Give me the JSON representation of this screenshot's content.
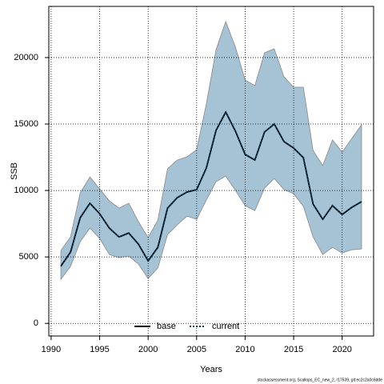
{
  "chart_data": {
    "type": "line",
    "xlabel": "Years",
    "ylabel": "SSB",
    "footer": "stockassessment.org, Scallops_EC_new_2, r17539, git:ec2c2a0c6dde",
    "x": [
      1991,
      1992,
      1993,
      1994,
      1995,
      1996,
      1997,
      1998,
      1999,
      2000,
      2001,
      2002,
      2003,
      2004,
      2005,
      2006,
      2007,
      2008,
      2009,
      2010,
      2011,
      2012,
      2013,
      2014,
      2015,
      2016,
      2017,
      2018,
      2019,
      2020,
      2021,
      2022
    ],
    "series": [
      {
        "name": "base",
        "color": "#000000",
        "dash": false,
        "values": [
          4300,
          5360,
          7950,
          9040,
          8250,
          7170,
          6500,
          6800,
          5960,
          4700,
          5720,
          8670,
          9460,
          9880,
          10060,
          11690,
          14520,
          15900,
          14460,
          12710,
          12290,
          14400,
          15000,
          13680,
          13190,
          12470,
          8980,
          7830,
          8860,
          8190,
          8730,
          9160
        ]
      },
      {
        "name": "current",
        "color": "#0b3d5c",
        "dash": true,
        "values": [
          4300,
          5360,
          7950,
          9040,
          8250,
          7170,
          6500,
          6800,
          5960,
          4700,
          5720,
          8670,
          9460,
          9880,
          10060,
          11690,
          14520,
          15900,
          14460,
          12710,
          12290,
          14400,
          15000,
          13680,
          13190,
          12470,
          8980,
          7830,
          8860,
          8190,
          8730,
          9160
        ]
      }
    ],
    "band": {
      "color": "#a5c3d5",
      "upper": [
        5480,
        6510,
        9820,
        11020,
        10120,
        9220,
        8670,
        9040,
        7650,
        6450,
        7770,
        11630,
        12290,
        12530,
        13070,
        16510,
        20600,
        22710,
        20780,
        18310,
        17890,
        20360,
        20660,
        18550,
        17770,
        17770,
        13010,
        11870,
        13800,
        12890,
        13920,
        14940
      ],
      "lower": [
        3310,
        4280,
        6150,
        7170,
        6390,
        5180,
        4940,
        5060,
        4460,
        3370,
        4160,
        6690,
        7410,
        8070,
        7830,
        9280,
        10660,
        11080,
        10000,
        8860,
        8490,
        10180,
        10900,
        10060,
        9760,
        8800,
        6510,
        5180,
        5720,
        5300,
        5540,
        5600
      ]
    },
    "xlim": [
      1989.76,
      2023.24
    ],
    "ylim": [
      -950,
      23850
    ],
    "xticks": [
      1990,
      1995,
      2000,
      2005,
      2010,
      2015,
      2020
    ],
    "yticks": [
      0,
      5000,
      10000,
      15000,
      20000
    ],
    "grid": true,
    "legend": "bottom"
  }
}
